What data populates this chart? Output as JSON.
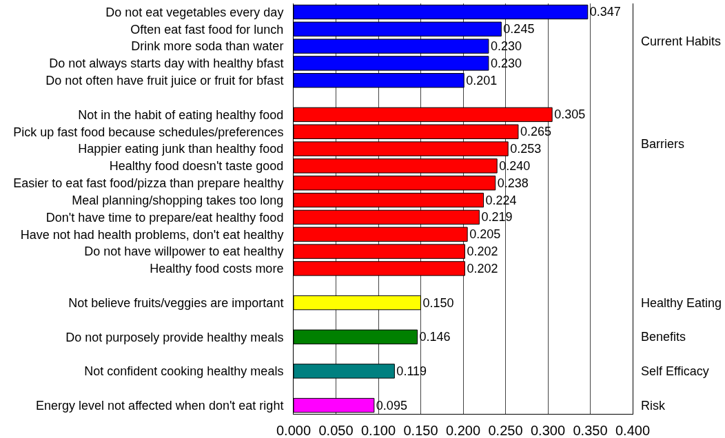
{
  "chart_data": {
    "type": "bar",
    "orientation": "horizontal",
    "categories": [
      "Do not eat vegetables every day",
      "Often eat fast food for lunch",
      "Drink more soda than water",
      "Do not always starts day with healthy bfast",
      "Do not often have fruit juice or fruit for bfast",
      null,
      "Not in the habit of eating healthy food",
      "Pick up fast food because schedules/preferences",
      "Happier eating junk than healthy food",
      "Healthy food doesn't taste good",
      "Easier to eat fast food/pizza than prepare healthy",
      "Meal planning/shopping takes too long",
      "Don't have time to prepare/eat healthy food",
      "Have not had health problems, don't eat healthy",
      "Do not have willpower to eat healthy",
      "Healthy food costs more",
      null,
      "Not believe fruits/veggies are important",
      null,
      "Do not purposely provide healthy meals",
      null,
      "Not confident cooking healthy meals",
      null,
      "Energy level not affected when don't eat right"
    ],
    "series": [
      {
        "name": "Current Habits",
        "color": "#0000ff",
        "values": [
          0.347,
          0.245,
          0.23,
          0.23,
          0.201,
          null,
          null,
          null,
          null,
          null,
          null,
          null,
          null,
          null,
          null,
          null,
          null,
          null,
          null,
          null,
          null,
          null,
          null,
          null
        ],
        "value_labels": [
          "0.347",
          "0.245",
          "0.230",
          "0.230",
          "0.201",
          null,
          null,
          null,
          null,
          null,
          null,
          null,
          null,
          null,
          null,
          null,
          null,
          null,
          null,
          null,
          null,
          null,
          null,
          null
        ]
      },
      {
        "name": "Barriers",
        "color": "#ff0000",
        "values": [
          null,
          null,
          null,
          null,
          null,
          null,
          0.305,
          0.265,
          0.253,
          0.24,
          0.238,
          0.224,
          0.219,
          0.205,
          0.202,
          0.202,
          null,
          null,
          null,
          null,
          null,
          null,
          null,
          null
        ],
        "value_labels": [
          null,
          null,
          null,
          null,
          null,
          null,
          "0.305",
          "0.265",
          "0.253",
          "0.240",
          "0.238",
          "0.224",
          "0.219",
          "0.205",
          "0.202",
          "0.202",
          null,
          null,
          null,
          null,
          null,
          null,
          null,
          null
        ]
      },
      {
        "name": "Healthy Eating",
        "color": "#ffff00",
        "values": [
          null,
          null,
          null,
          null,
          null,
          null,
          null,
          null,
          null,
          null,
          null,
          null,
          null,
          null,
          null,
          null,
          null,
          0.15,
          null,
          null,
          null,
          null,
          null,
          null
        ],
        "value_labels": [
          null,
          null,
          null,
          null,
          null,
          null,
          null,
          null,
          null,
          null,
          null,
          null,
          null,
          null,
          null,
          null,
          null,
          "0.150",
          null,
          null,
          null,
          null,
          null,
          null
        ]
      },
      {
        "name": "Benefits",
        "color": "#008000",
        "values": [
          null,
          null,
          null,
          null,
          null,
          null,
          null,
          null,
          null,
          null,
          null,
          null,
          null,
          null,
          null,
          null,
          null,
          null,
          null,
          0.146,
          null,
          null,
          null,
          null
        ],
        "value_labels": [
          null,
          null,
          null,
          null,
          null,
          null,
          null,
          null,
          null,
          null,
          null,
          null,
          null,
          null,
          null,
          null,
          null,
          null,
          null,
          "0.146",
          null,
          null,
          null,
          null
        ]
      },
      {
        "name": "Self Efficacy",
        "color": "#008080",
        "values": [
          null,
          null,
          null,
          null,
          null,
          null,
          null,
          null,
          null,
          null,
          null,
          null,
          null,
          null,
          null,
          null,
          null,
          null,
          null,
          null,
          null,
          0.119,
          null,
          null
        ],
        "value_labels": [
          null,
          null,
          null,
          null,
          null,
          null,
          null,
          null,
          null,
          null,
          null,
          null,
          null,
          null,
          null,
          null,
          null,
          null,
          null,
          null,
          null,
          "0.119",
          null,
          null
        ]
      },
      {
        "name": "Risk",
        "color": "#ff00ff",
        "values": [
          null,
          null,
          null,
          null,
          null,
          null,
          null,
          null,
          null,
          null,
          null,
          null,
          null,
          null,
          null,
          null,
          null,
          null,
          null,
          null,
          null,
          null,
          null,
          0.095
        ],
        "value_labels": [
          null,
          null,
          null,
          null,
          null,
          null,
          null,
          null,
          null,
          null,
          null,
          null,
          null,
          null,
          null,
          null,
          null,
          null,
          null,
          null,
          null,
          null,
          null,
          "0.095"
        ]
      }
    ],
    "xlim": [
      0,
      0.4
    ],
    "xticks": [
      {
        "value": 0,
        "label": "0.000"
      },
      {
        "value": 0.05,
        "label": "0.050"
      },
      {
        "value": 0.1,
        "label": "0.100"
      },
      {
        "value": 0.15,
        "label": "0.150"
      },
      {
        "value": 0.2,
        "label": "0.200"
      },
      {
        "value": 0.25,
        "label": "0.250"
      },
      {
        "value": 0.3,
        "label": "0.300"
      },
      {
        "value": 0.35,
        "label": "0.350"
      },
      {
        "value": 0.4,
        "label": "0.400"
      }
    ],
    "grid": "x"
  }
}
